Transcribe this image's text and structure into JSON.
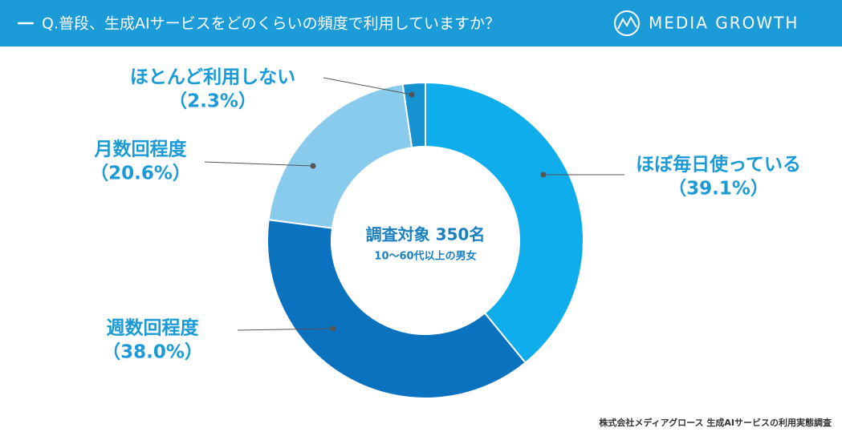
{
  "header": {
    "title": "Q.普段、生成AIサービスをどのくらいの頻度で利用していますか？",
    "logo": "MEDIA GROWTH"
  },
  "chart_data": {
    "type": "donut",
    "categories": [
      "ほぼ毎日使っている",
      "週数回程度",
      "月数回程度",
      "ほとんど利用しない"
    ],
    "values": [
      39.1,
      38.0,
      20.6,
      2.3
    ],
    "value_labels": [
      "（39.1%）",
      "（38.0%）",
      "（20.6%）",
      "（2.3%）"
    ],
    "colors": [
      "#0fadeb",
      "#0a72bf",
      "#88cbec",
      "#1592cf"
    ],
    "center_title": "調査対象 350名",
    "center_subtitle": "10〜60代以上の男女"
  },
  "footer": {
    "source": "株式会社メディアグロース 生成AIサービスの利用実態調査"
  }
}
